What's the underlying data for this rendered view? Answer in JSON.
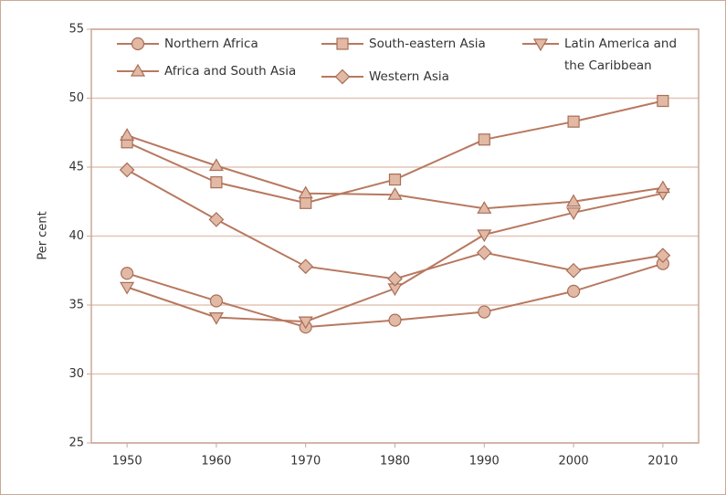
{
  "chart_data": {
    "type": "line",
    "ylabel": "Per cent",
    "x": [
      1950,
      1960,
      1970,
      1980,
      1990,
      2000,
      2010
    ],
    "xlim": [
      1946,
      2014
    ],
    "xticks": [
      1950,
      1960,
      1970,
      1980,
      1990,
      2000,
      2010
    ],
    "ylim": [
      25,
      55
    ],
    "yticks": [
      25,
      30,
      35,
      40,
      45,
      50,
      55
    ],
    "grid": true,
    "legend": "top",
    "series": [
      {
        "name": "Northern Africa",
        "marker": "circle",
        "color": "#b8785f",
        "values": [
          37.3,
          35.3,
          33.4,
          33.9,
          34.5,
          36.0,
          38.0
        ]
      },
      {
        "name": "South-eastern Asia",
        "marker": "square",
        "color": "#b8785f",
        "values": [
          46.8,
          43.9,
          42.4,
          44.1,
          47.0,
          48.3,
          49.8
        ]
      },
      {
        "name": "Latin America and the Caribbean",
        "marker": "triangle-down",
        "color": "#b8785f",
        "values": [
          36.3,
          34.1,
          33.8,
          36.2,
          40.1,
          41.7,
          43.1
        ]
      },
      {
        "name": "Africa and South Asia",
        "marker": "triangle-up",
        "color": "#b8785f",
        "values": [
          47.3,
          45.1,
          43.1,
          43.0,
          42.0,
          42.5,
          43.5
        ]
      },
      {
        "name": "Western Asia",
        "marker": "diamond",
        "color": "#b8785f",
        "values": [
          44.8,
          41.2,
          37.8,
          36.9,
          38.8,
          37.5,
          38.6
        ]
      }
    ]
  }
}
